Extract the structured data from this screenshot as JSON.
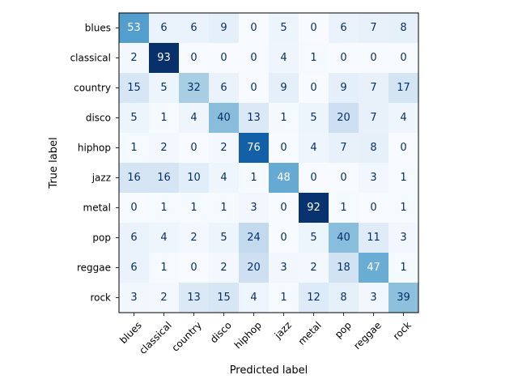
{
  "chart_data": {
    "type": "heatmap",
    "title": "",
    "xlabel": "Predicted label",
    "ylabel": "True label",
    "colormap": "Blues",
    "vmin": 0,
    "vmax": 93,
    "labels": [
      "blues",
      "classical",
      "country",
      "disco",
      "hiphop",
      "jazz",
      "metal",
      "pop",
      "reggae",
      "rock"
    ],
    "matrix": [
      [
        53,
        6,
        6,
        9,
        0,
        5,
        0,
        6,
        7,
        8
      ],
      [
        2,
        93,
        0,
        0,
        0,
        4,
        1,
        0,
        0,
        0
      ],
      [
        15,
        5,
        32,
        6,
        0,
        9,
        0,
        9,
        7,
        17
      ],
      [
        5,
        1,
        4,
        40,
        13,
        1,
        5,
        20,
        7,
        4
      ],
      [
        1,
        2,
        0,
        2,
        76,
        0,
        4,
        7,
        8,
        0
      ],
      [
        16,
        16,
        10,
        4,
        1,
        48,
        0,
        0,
        3,
        1
      ],
      [
        0,
        1,
        1,
        1,
        3,
        0,
        92,
        1,
        0,
        1
      ],
      [
        6,
        4,
        2,
        5,
        24,
        0,
        5,
        40,
        11,
        3
      ],
      [
        6,
        1,
        0,
        2,
        20,
        3,
        2,
        18,
        47,
        1
      ],
      [
        3,
        2,
        13,
        15,
        4,
        1,
        12,
        8,
        3,
        39
      ]
    ],
    "grid": false
  }
}
